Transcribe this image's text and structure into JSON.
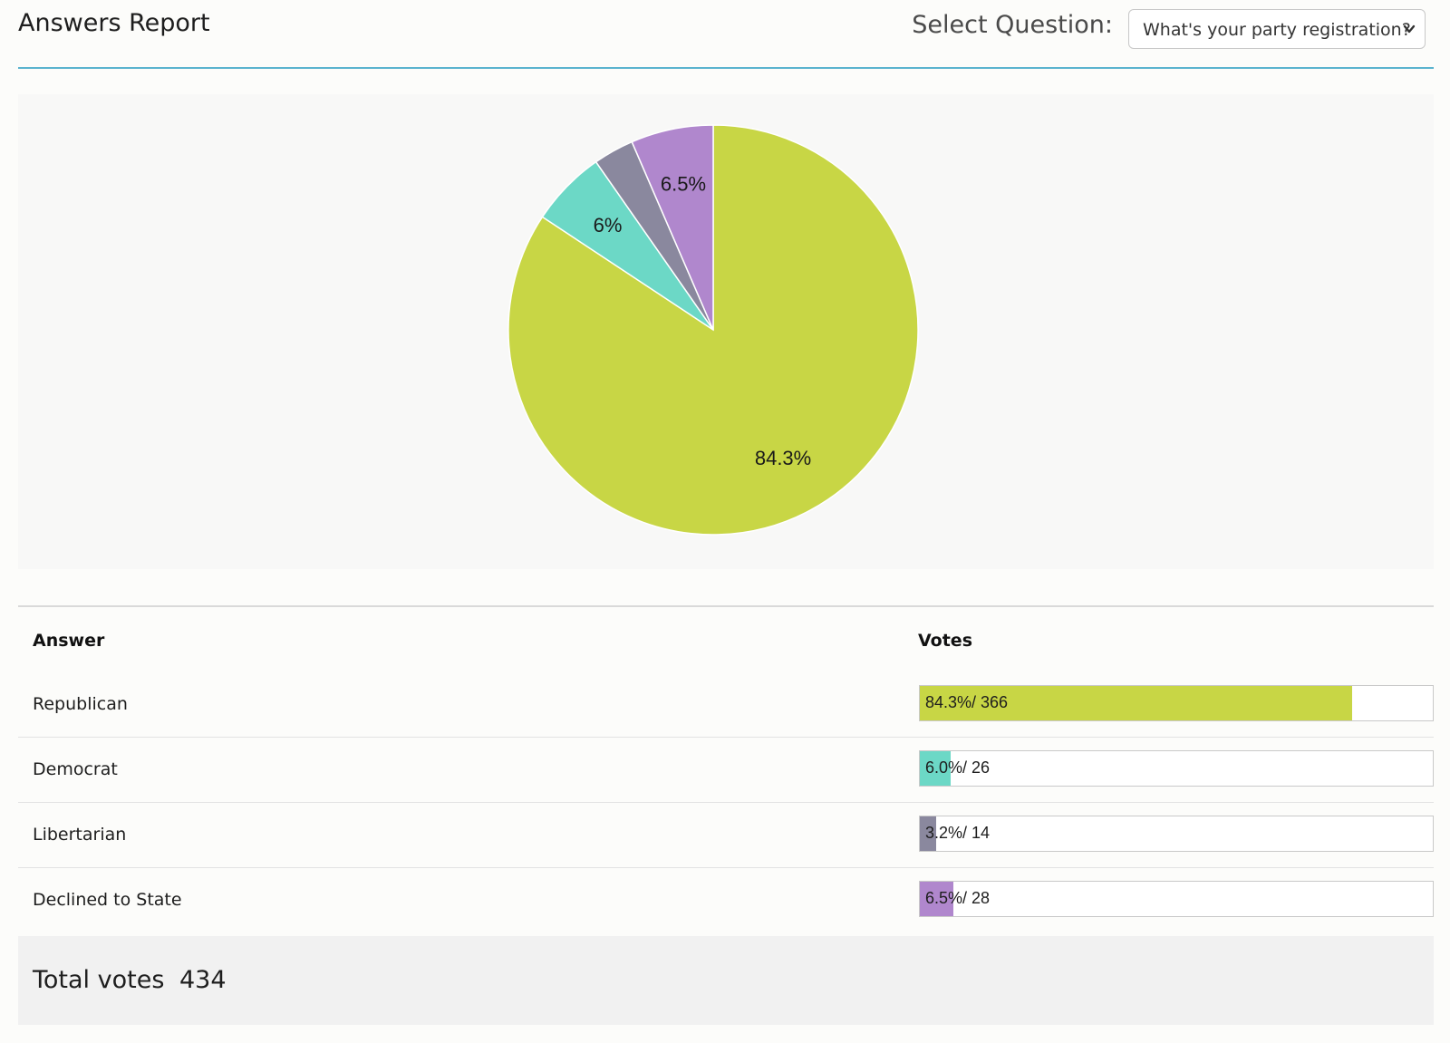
{
  "header": {
    "title": "Answers Report",
    "select_label": "Select Question:",
    "select_value": "What's your party registration?"
  },
  "chart_data": {
    "type": "pie",
    "slices": [
      {
        "label": "Republican",
        "value": 84.3,
        "display": "84.3%",
        "color": "#c8d645"
      },
      {
        "label": "Democrat",
        "value": 6.0,
        "display": "6%",
        "color": "#6cd8c6"
      },
      {
        "label": "Libertarian",
        "value": 3.2,
        "display": "",
        "color": "#8a889e"
      },
      {
        "label": "Declined to State",
        "value": 6.5,
        "display": "6.5%",
        "color": "#b087cd"
      }
    ]
  },
  "table": {
    "col_answer": "Answer",
    "col_votes": "Votes",
    "rows": [
      {
        "answer": "Republican",
        "percent": 84.3,
        "text": "84.3%/ 366",
        "color": "#c8d645"
      },
      {
        "answer": "Democrat",
        "percent": 6.0,
        "text": "6.0%/ 26",
        "color": "#6cd8c6"
      },
      {
        "answer": "Libertarian",
        "percent": 3.2,
        "text": "3.2%/ 14",
        "color": "#8a889e"
      },
      {
        "answer": "Declined to State",
        "percent": 6.5,
        "text": "6.5%/ 28",
        "color": "#b087cd"
      }
    ]
  },
  "total": {
    "label": "Total votes",
    "value": "434"
  }
}
